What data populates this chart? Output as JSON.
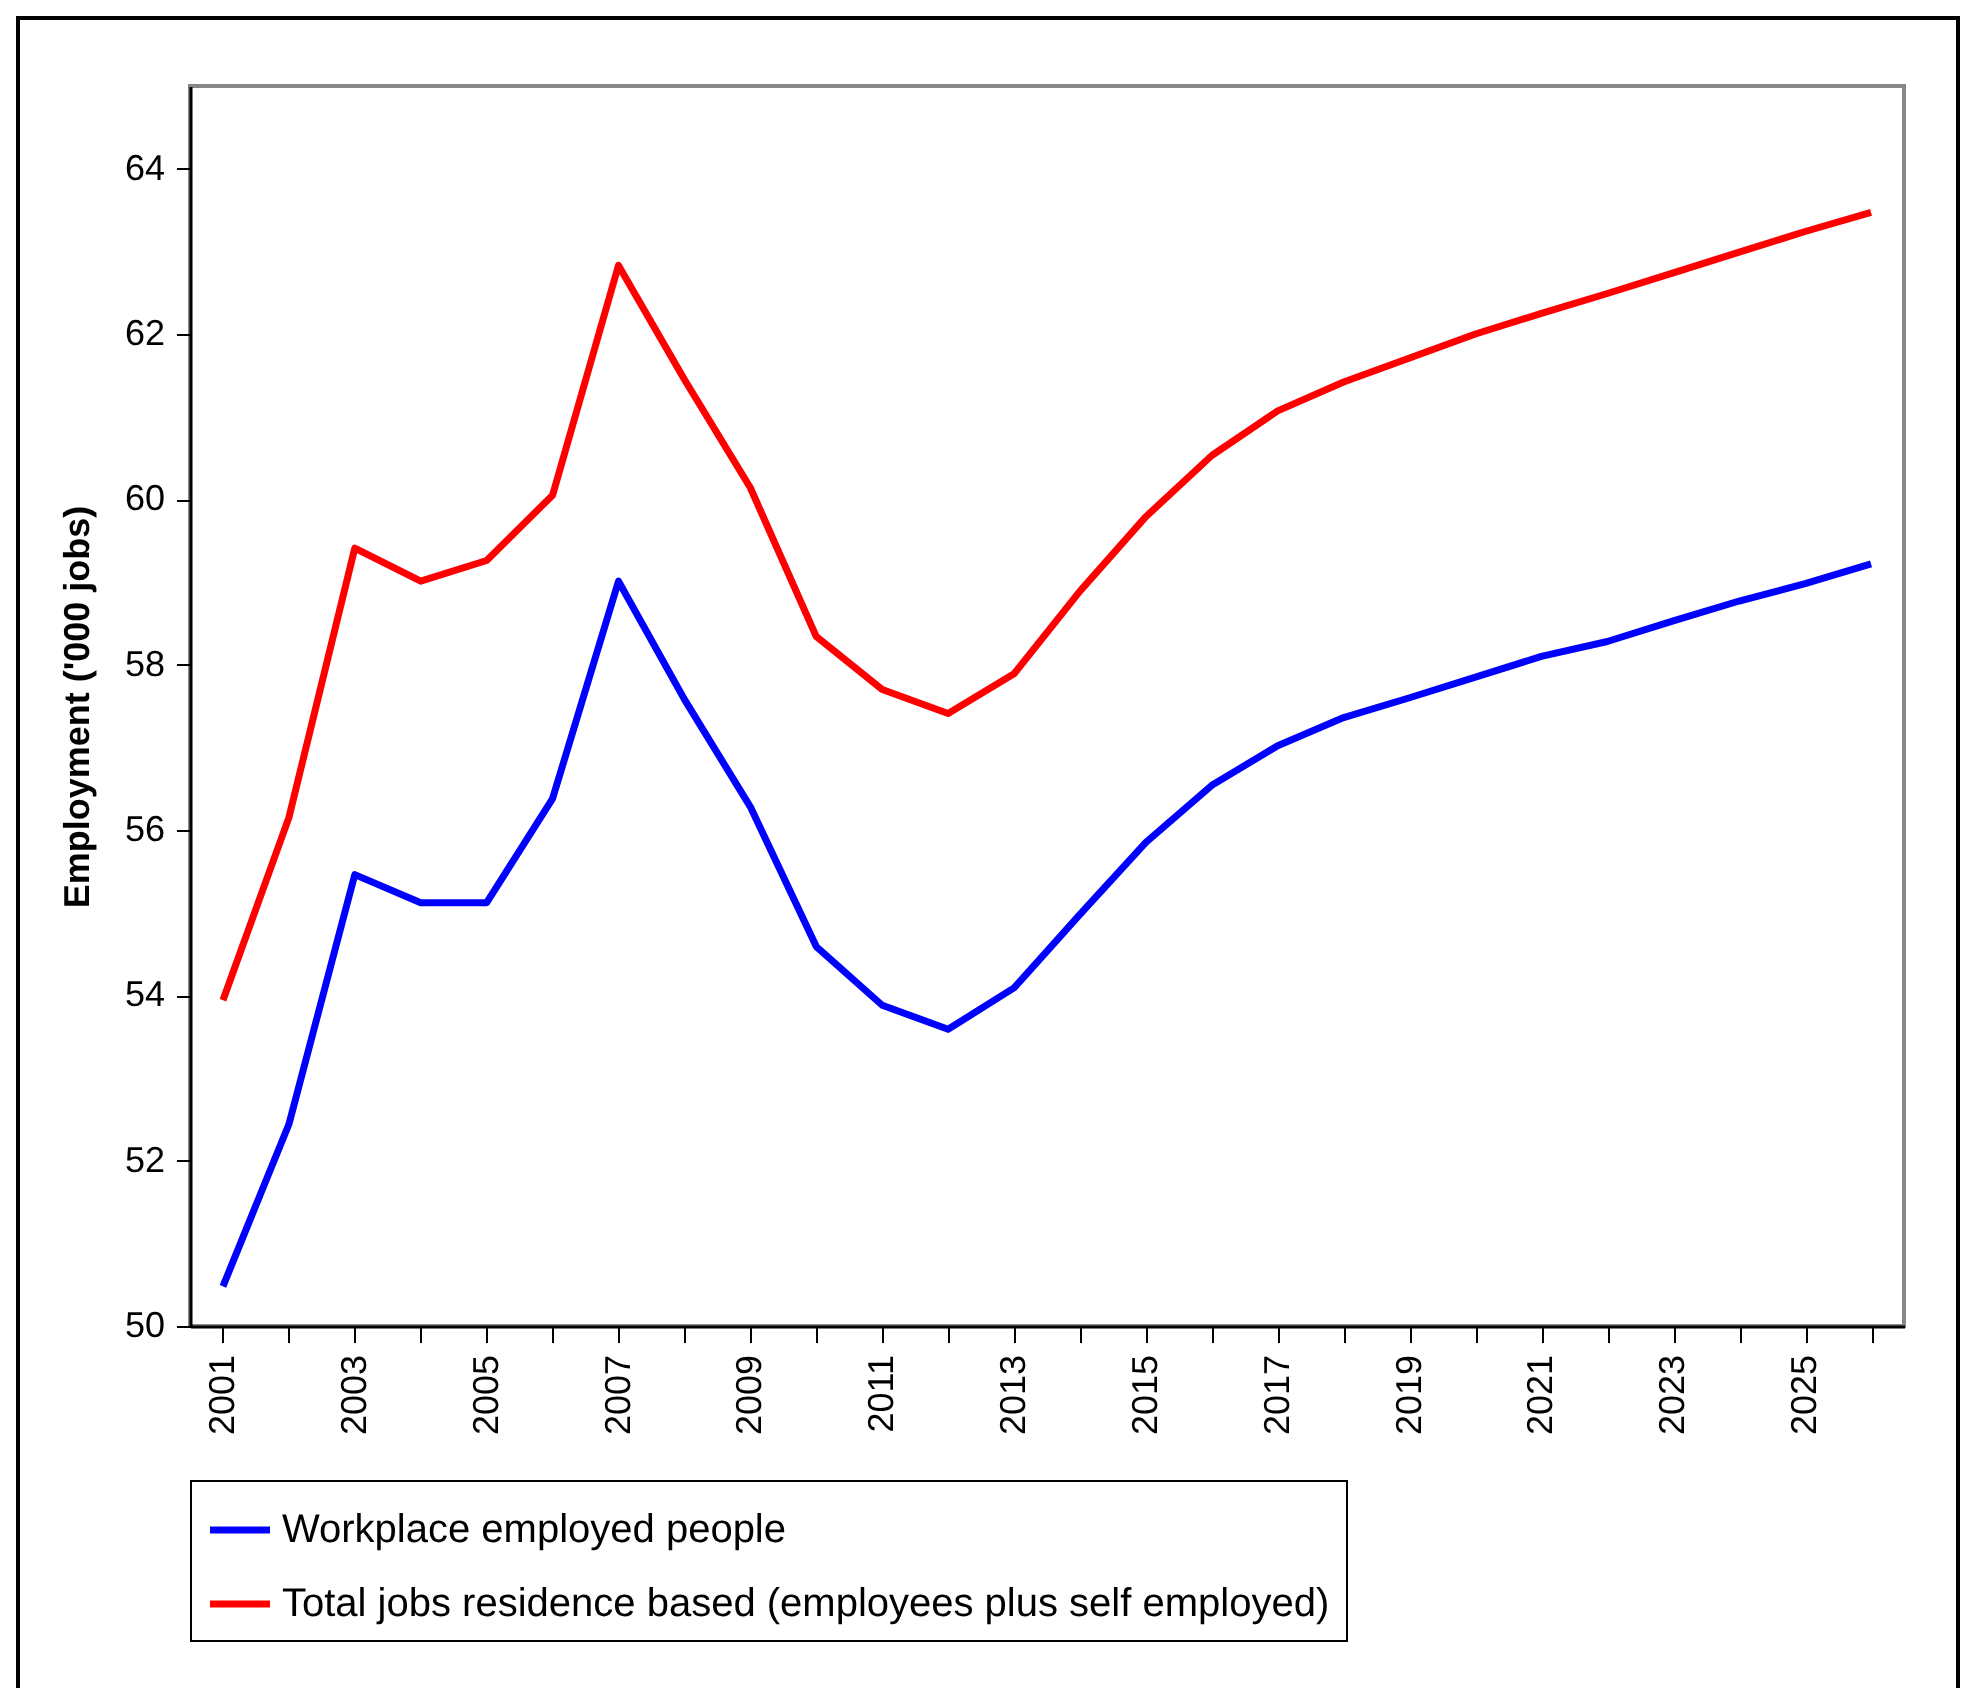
{
  "chart_data": {
    "type": "line",
    "ylabel": "Employment ('000 jobs)",
    "categories": [
      "2001",
      null,
      "2003",
      null,
      "2005",
      null,
      "2007",
      null,
      "2009",
      null,
      "2011",
      null,
      "2013",
      null,
      "2015",
      null,
      "2017",
      null,
      "2019",
      null,
      "2021",
      null,
      "2023",
      null,
      "2025",
      null
    ],
    "ylim": [
      50,
      65
    ],
    "yticks": [
      50,
      52,
      54,
      56,
      58,
      60,
      62,
      64
    ],
    "legend": "bottom",
    "grid": false,
    "series": [
      {
        "name": "Workplace employed people",
        "color": "#0000ff",
        "values": [
          50.48,
          52.44,
          55.46,
          55.12,
          55.12,
          56.38,
          59.01,
          57.58,
          56.28,
          54.59,
          53.88,
          53.59,
          54.09,
          54.98,
          55.85,
          56.54,
          57.02,
          57.36,
          57.6,
          57.85,
          58.1,
          58.28,
          58.53,
          58.77,
          58.98,
          59.22
        ]
      },
      {
        "name": "Total jobs residence based (employees plus self employed)",
        "color": "#ff0000",
        "values": [
          53.94,
          56.15,
          59.41,
          59.01,
          59.26,
          60.05,
          62.83,
          61.45,
          60.14,
          58.34,
          57.7,
          57.41,
          57.89,
          58.89,
          59.79,
          60.53,
          61.07,
          61.42,
          61.71,
          62.0,
          62.25,
          62.49,
          62.74,
          62.99,
          63.24,
          63.47
        ]
      }
    ]
  }
}
